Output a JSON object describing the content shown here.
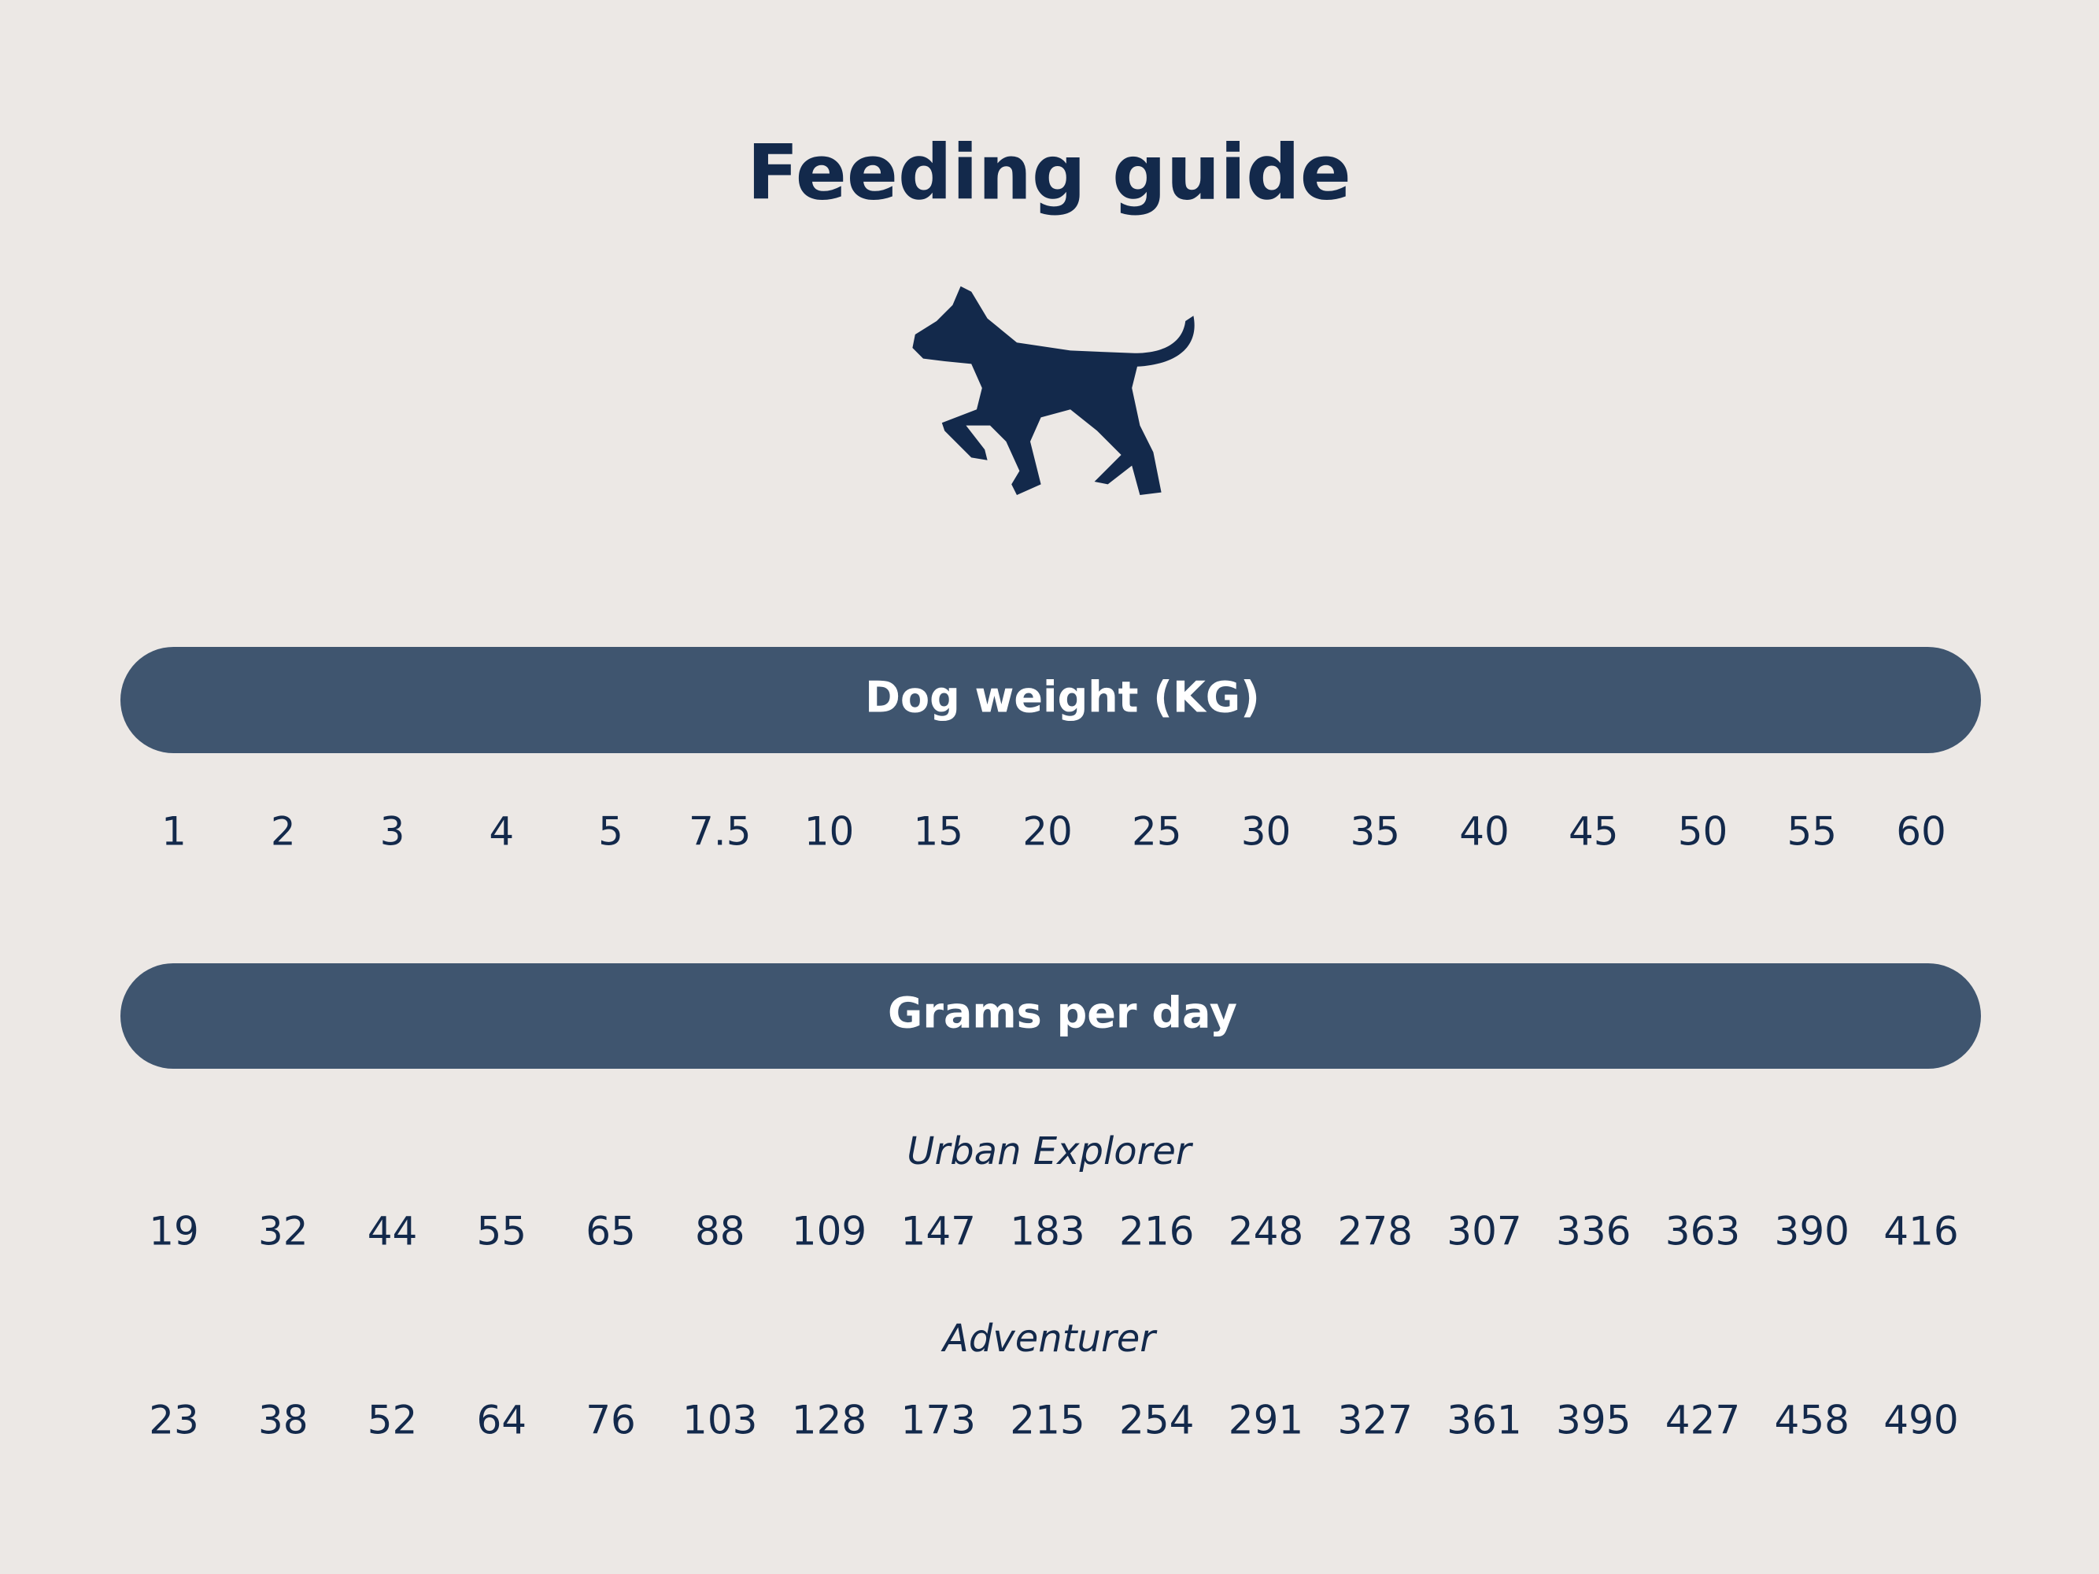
{
  "title": "Feeding guide",
  "weight_header": "Dog weight (KG)",
  "weights": [
    1,
    2,
    3,
    4,
    5,
    7.5,
    10,
    15,
    20,
    25,
    30,
    35,
    40,
    45,
    50,
    55,
    60
  ],
  "grams_header": "Grams per day",
  "series": [
    {
      "name": "Urban Explorer",
      "values": [
        19,
        32,
        44,
        55,
        65,
        88,
        109,
        147,
        183,
        216,
        248,
        278,
        307,
        336,
        363,
        390,
        416
      ]
    },
    {
      "name": "Adventurer",
      "values": [
        23,
        38,
        52,
        64,
        76,
        103,
        128,
        173,
        215,
        254,
        291,
        327,
        361,
        395,
        427,
        458,
        490
      ]
    }
  ]
}
